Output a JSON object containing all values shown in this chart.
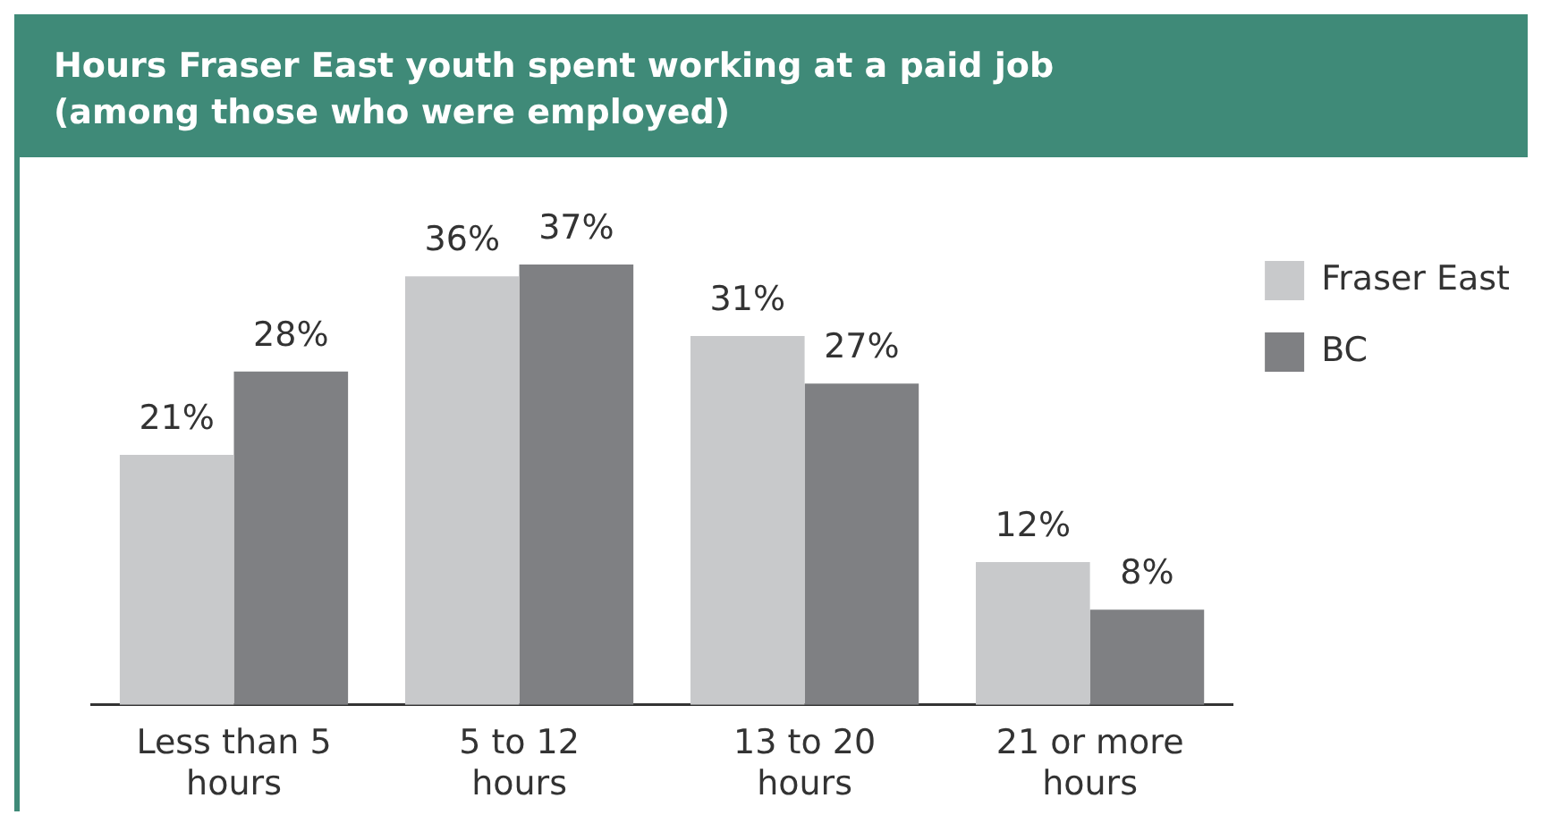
{
  "chart_data": {
    "type": "bar",
    "title": "Hours Fraser East youth spent working at a paid job\n(among those who were employed)",
    "categories": [
      "Less than 5 hours",
      "5 to 12 hours",
      "13 to 20 hours",
      "21 or more hours"
    ],
    "series": [
      {
        "name": "Fraser East",
        "color": "#c8c9cb",
        "values": [
          21,
          36,
          31,
          12
        ],
        "value_labels": [
          "21%",
          "36%",
          "31%",
          "12%"
        ]
      },
      {
        "name": "BC",
        "color": "#7f8083",
        "values": [
          28,
          37,
          27,
          8
        ],
        "value_labels": [
          "28%",
          "37%",
          "27%",
          "8%"
        ]
      }
    ],
    "legend": "top right",
    "grid": false
  }
}
